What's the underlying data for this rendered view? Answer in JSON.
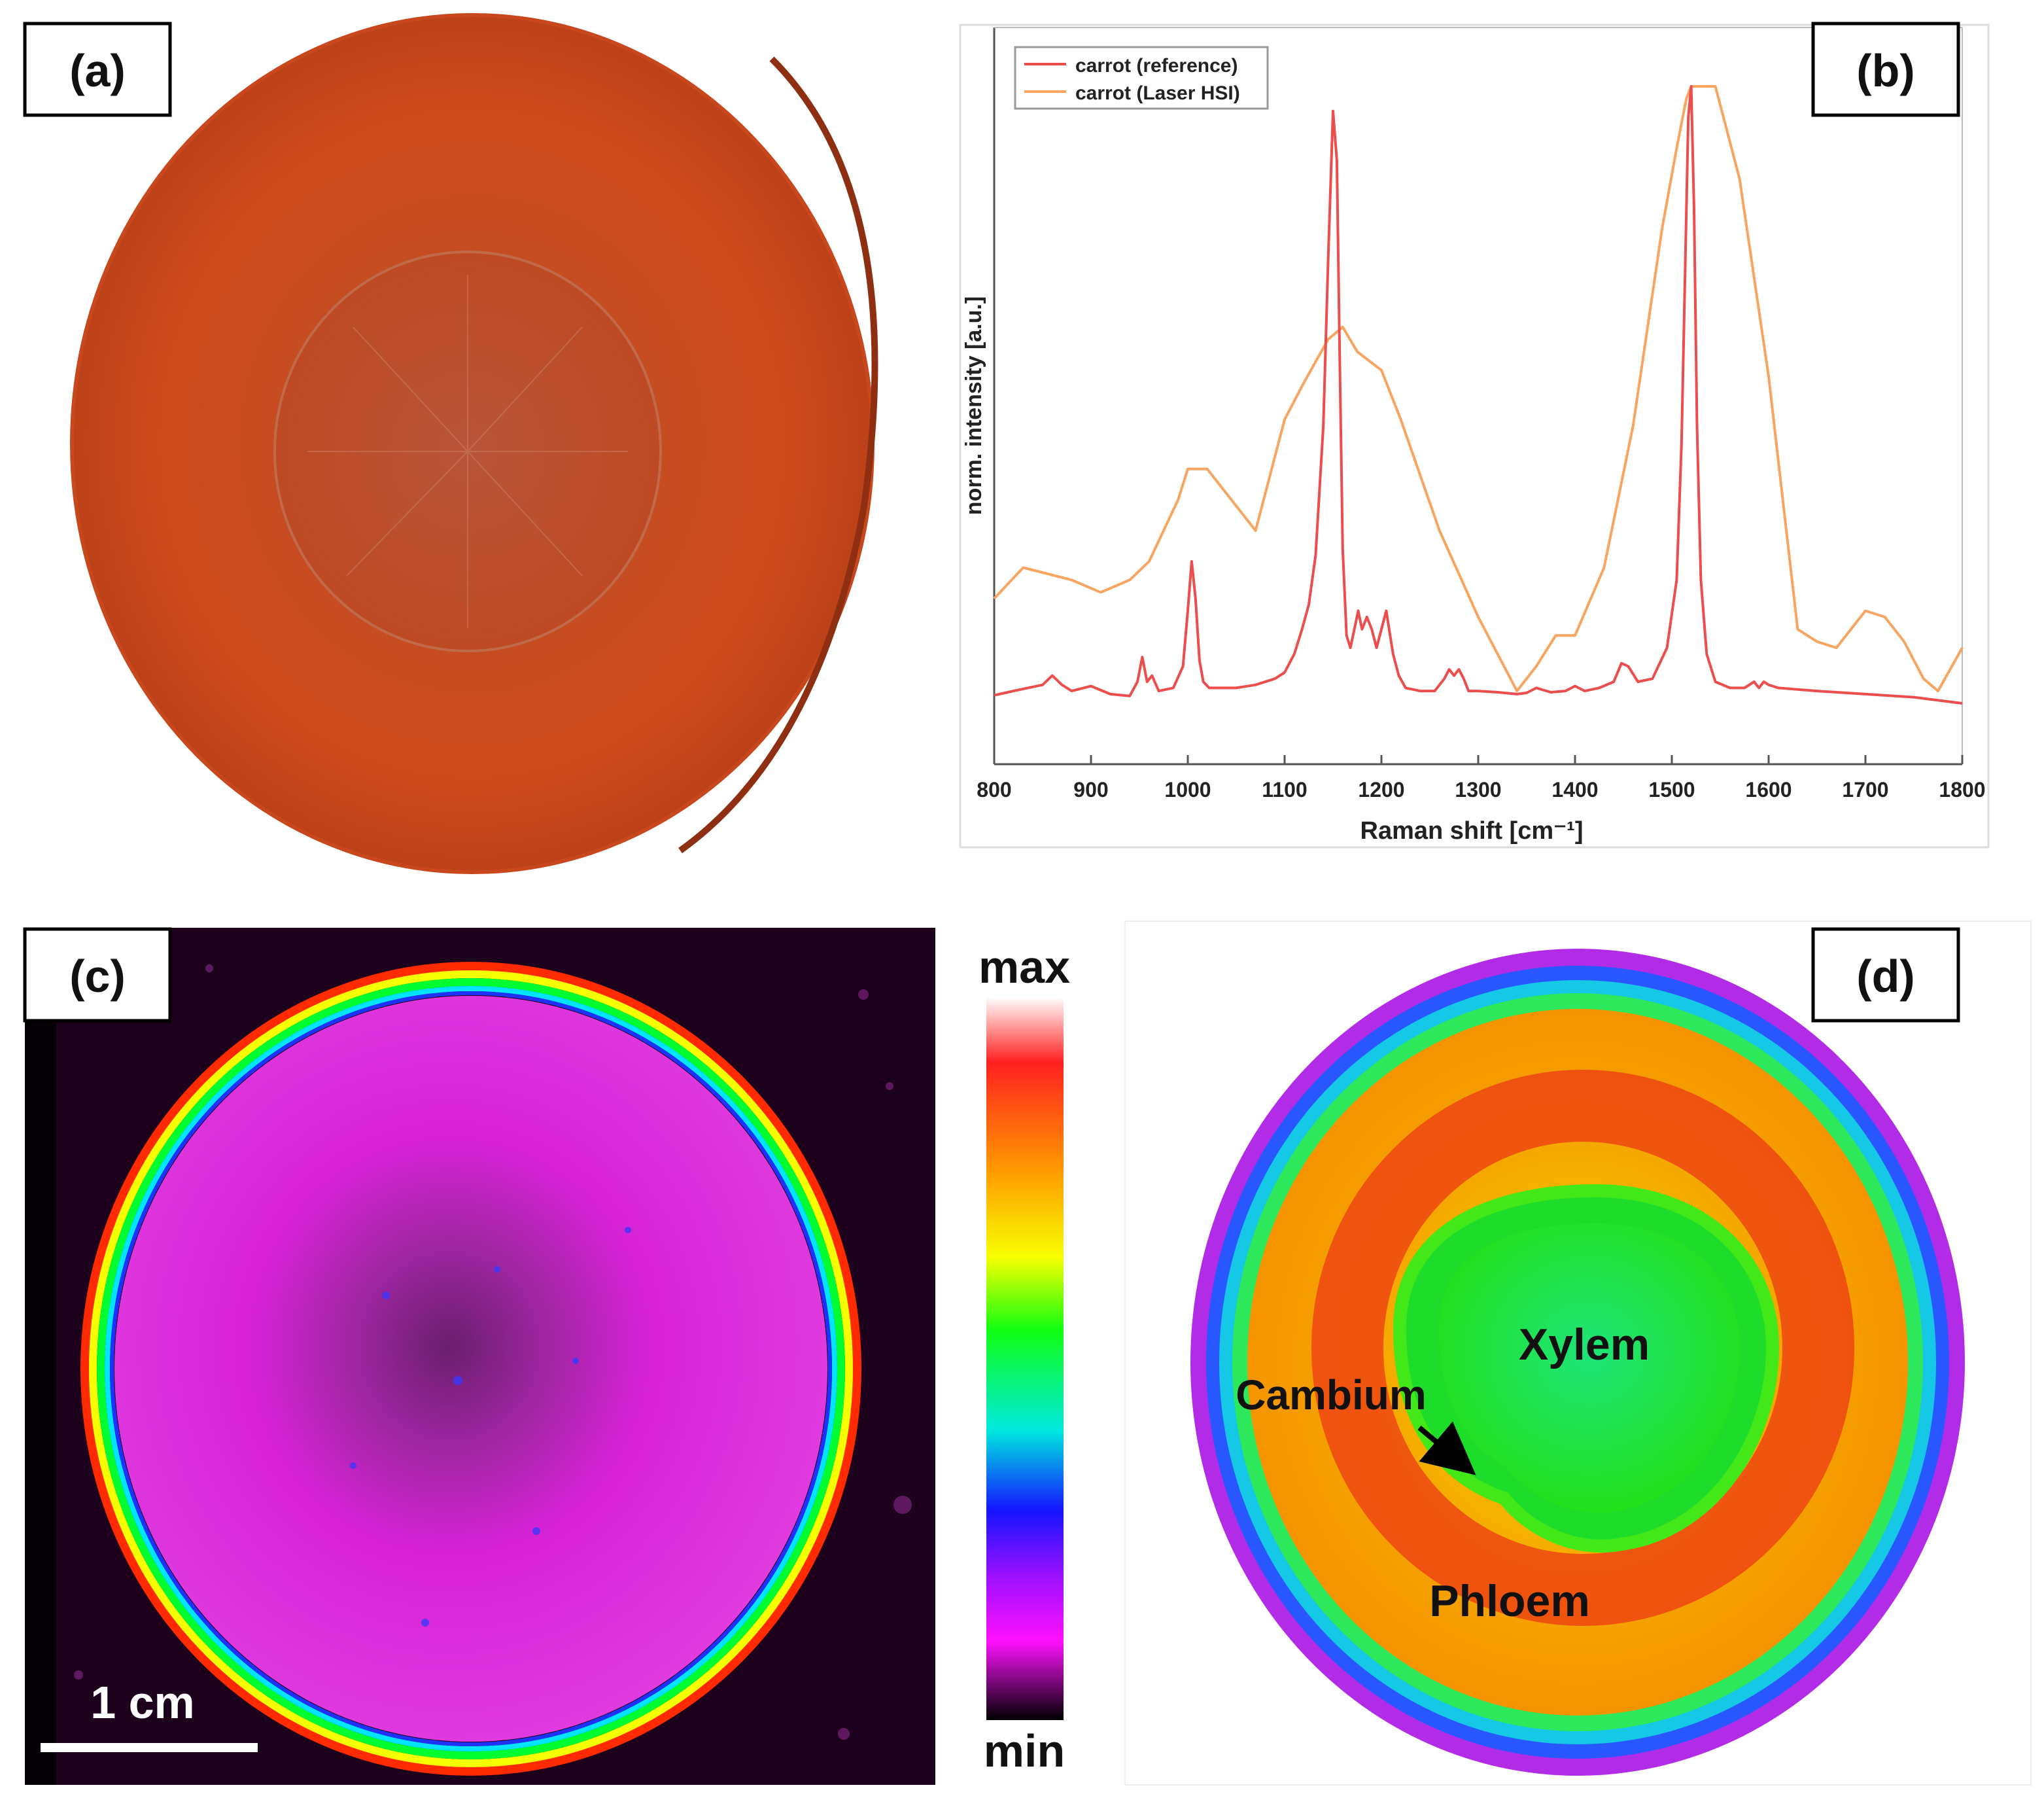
{
  "panels": {
    "a": {
      "label": "(a)"
    },
    "b": {
      "label": "(b)"
    },
    "c": {
      "label": "(c)",
      "scalebar": "1 cm"
    },
    "d": {
      "label": "(d)",
      "annotations": {
        "xylem": "Xylem",
        "cambium": "Cambium",
        "phloem": "Phloem"
      }
    }
  },
  "colorbar": {
    "max_label": "max",
    "min_label": "min"
  },
  "colors": {
    "reference": "#ec4d4d",
    "laser_hsi": "#f7a560",
    "carrot_outer": "#c9471c",
    "carrot_core": "#b24a26"
  },
  "chart_data": {
    "type": "line",
    "title": "",
    "xlabel": "Raman shift [cm⁻¹]",
    "ylabel": "norm. intensity [a.u.]",
    "xlim": [
      800,
      1800
    ],
    "ylim": [
      0,
      1.15
    ],
    "xticks": [
      800,
      900,
      1000,
      1100,
      1200,
      1300,
      1400,
      1500,
      1600,
      1700,
      1800
    ],
    "legend_position": "top-left",
    "series": [
      {
        "name": "carrot (reference)",
        "color": "#ec4d4d",
        "x": [
          800,
          820,
          850,
          860,
          870,
          880,
          900,
          920,
          940,
          948,
          953,
          958,
          963,
          970,
          985,
          995,
          1000,
          1004,
          1008,
          1012,
          1016,
          1022,
          1030,
          1050,
          1070,
          1090,
          1100,
          1110,
          1118,
          1125,
          1132,
          1140,
          1145,
          1150,
          1154,
          1157,
          1160,
          1164,
          1168,
          1172,
          1176,
          1180,
          1185,
          1190,
          1195,
          1200,
          1205,
          1208,
          1212,
          1218,
          1225,
          1240,
          1255,
          1265,
          1270,
          1275,
          1280,
          1285,
          1290,
          1300,
          1320,
          1340,
          1350,
          1360,
          1375,
          1390,
          1400,
          1410,
          1425,
          1440,
          1448,
          1455,
          1465,
          1480,
          1495,
          1505,
          1510,
          1514,
          1517,
          1520,
          1523,
          1526,
          1530,
          1536,
          1545,
          1560,
          1575,
          1585,
          1590,
          1595,
          1600,
          1610,
          1650,
          1700,
          1750,
          1800
        ],
        "y": [
          0.013,
          0.02,
          0.03,
          0.045,
          0.03,
          0.02,
          0.028,
          0.015,
          0.012,
          0.035,
          0.075,
          0.035,
          0.045,
          0.02,
          0.025,
          0.06,
          0.15,
          0.23,
          0.17,
          0.07,
          0.035,
          0.025,
          0.025,
          0.025,
          0.03,
          0.04,
          0.05,
          0.08,
          0.12,
          0.16,
          0.24,
          0.45,
          0.72,
          0.96,
          0.88,
          0.55,
          0.25,
          0.11,
          0.09,
          0.12,
          0.15,
          0.12,
          0.14,
          0.12,
          0.09,
          0.12,
          0.15,
          0.12,
          0.08,
          0.045,
          0.025,
          0.02,
          0.02,
          0.04,
          0.055,
          0.045,
          0.055,
          0.04,
          0.02,
          0.02,
          0.018,
          0.015,
          0.017,
          0.025,
          0.018,
          0.02,
          0.028,
          0.02,
          0.025,
          0.035,
          0.065,
          0.06,
          0.035,
          0.04,
          0.09,
          0.2,
          0.42,
          0.72,
          0.95,
          1.0,
          0.8,
          0.45,
          0.2,
          0.08,
          0.035,
          0.025,
          0.025,
          0.035,
          0.025,
          0.035,
          0.03,
          0.025,
          0.02,
          0.015,
          0.01,
          0.0
        ]
      },
      {
        "name": "carrot (Laser HSI)",
        "color": "#f7a560",
        "x": [
          800,
          830,
          880,
          910,
          940,
          960,
          990,
          1000,
          1020,
          1070,
          1100,
          1120,
          1145,
          1160,
          1175,
          1200,
          1220,
          1260,
          1300,
          1340,
          1360,
          1380,
          1400,
          1430,
          1460,
          1490,
          1505,
          1515,
          1520,
          1530,
          1545,
          1570,
          1600,
          1630,
          1650,
          1670,
          1700,
          1720,
          1740,
          1760,
          1775,
          1800
        ],
        "y": [
          0.17,
          0.22,
          0.2,
          0.18,
          0.2,
          0.23,
          0.33,
          0.38,
          0.38,
          0.28,
          0.46,
          0.52,
          0.59,
          0.61,
          0.57,
          0.54,
          0.46,
          0.28,
          0.14,
          0.02,
          0.06,
          0.11,
          0.11,
          0.22,
          0.45,
          0.77,
          0.9,
          0.98,
          1.0,
          1.0,
          1.0,
          0.85,
          0.53,
          0.12,
          0.1,
          0.09,
          0.15,
          0.14,
          0.1,
          0.04,
          0.02,
          0.09
        ]
      }
    ]
  }
}
